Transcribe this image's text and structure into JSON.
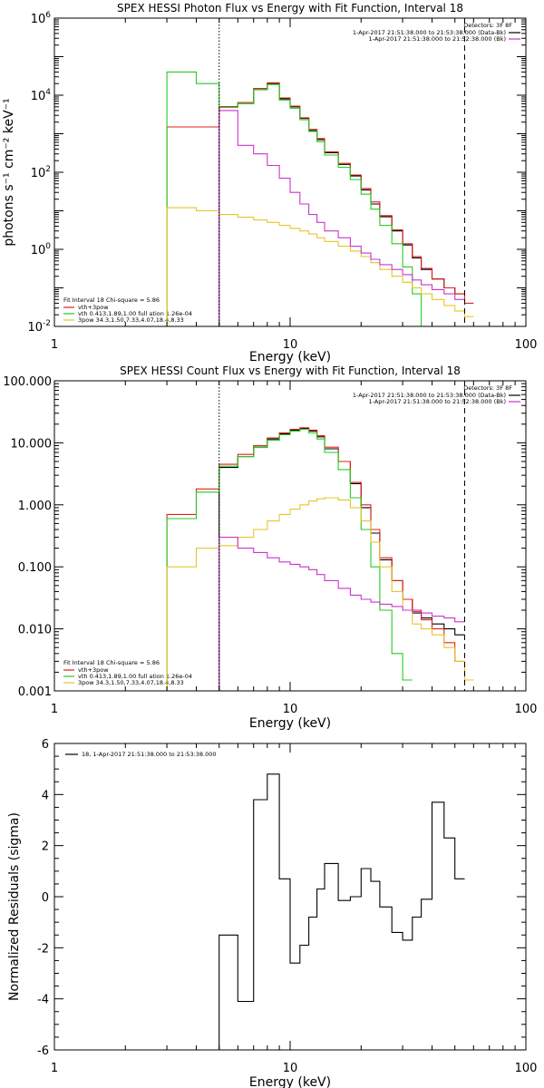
{
  "chart_data": [
    {
      "type": "line",
      "title": "SPEX HESSI Photon Flux vs Energy with Fit Function, Interval 18",
      "xlabel": "Energy (keV)",
      "ylabel": "photons s⁻¹ cm⁻² keV⁻¹",
      "xscale": "log",
      "yscale": "log",
      "xlim": [
        1,
        100
      ],
      "ylim": [
        0.01,
        1000000
      ],
      "x_tick_labels": [
        "1",
        "10",
        "100"
      ],
      "y_tick_labels": [
        {
          "value": 0.01,
          "base": "10",
          "exp": "-2"
        },
        {
          "value": 1,
          "base": "10",
          "exp": "0"
        },
        {
          "value": 100,
          "base": "10",
          "exp": "2"
        },
        {
          "value": 10000,
          "base": "10",
          "exp": "4"
        },
        {
          "value": 1000000,
          "base": "10",
          "exp": "6"
        }
      ],
      "legend_title": "Detectors: 3F 8F",
      "legend_entries": [
        {
          "text": "1-Apr-2017 21:51:38.000 to 21:53:38.000 (Data-Bk)",
          "color": "#000000"
        },
        {
          "text": "1-Apr-2017 21:51:38.000 to 21:52:38.000 (Bk)",
          "color": "#cc33cc"
        }
      ],
      "fit_lines": [
        {
          "text": "Fit Interval 18   Chi-square = 5.86",
          "color": ""
        },
        {
          "text": "vth+3pow",
          "color": "#e0201e"
        },
        {
          "text": "vth 0.413,1.89,1.00  full ation 1.26e-04",
          "color": "#22cc22"
        },
        {
          "text": "3pow 34.3,1.50,7.33,4.07,18.4,8.33",
          "color": "#e6c52a"
        }
      ],
      "vlines": [
        {
          "x": 5,
          "style": "dotted",
          "color": "#000000"
        },
        {
          "x": 55,
          "style": "dashed",
          "color": "#000000"
        }
      ],
      "edges": [
        3,
        4,
        5,
        6,
        7,
        8,
        9,
        10,
        11,
        12,
        13,
        14,
        16,
        18,
        20,
        22,
        24,
        27,
        30,
        33,
        36,
        40,
        45,
        50,
        55,
        60
      ],
      "series": [
        {
          "name": "Data-Bk",
          "color": "#000000",
          "start": 2,
          "values": [
            5000,
            6000,
            14000,
            20000,
            8000,
            5000,
            2500,
            1200,
            700,
            320,
            160,
            80,
            35,
            15,
            7,
            3,
            1.3,
            0.6,
            0.3,
            0.17,
            0.1,
            0.07
          ]
        },
        {
          "name": "vth+3pow",
          "color": "#e0201e",
          "start": 0,
          "values": [
            1500,
            1500,
            5000,
            6500,
            15000,
            21000,
            8500,
            5200,
            2600,
            1300,
            750,
            340,
            170,
            85,
            38,
            17,
            7.5,
            3.2,
            1.4,
            0.65,
            0.32,
            0.17,
            0.1,
            0.07,
            0.04
          ]
        },
        {
          "name": "vth",
          "color": "#22cc22",
          "start": 0,
          "values": [
            40000,
            20000,
            4800,
            6000,
            14000,
            19000,
            7500,
            4600,
            2300,
            1150,
            620,
            280,
            135,
            65,
            27,
            11,
            4.2,
            1.4,
            0.35,
            0.07,
            0.01
          ]
        },
        {
          "name": "3pow",
          "color": "#e6c52a",
          "start": 0,
          "values": [
            12,
            10,
            8,
            6.8,
            5.8,
            5,
            4.2,
            3.5,
            3,
            2.5,
            2,
            1.6,
            1.2,
            0.9,
            0.65,
            0.45,
            0.3,
            0.2,
            0.14,
            0.1,
            0.07,
            0.05,
            0.035,
            0.025,
            0.018
          ]
        },
        {
          "name": "Bk",
          "color": "#cc33cc",
          "start": 2,
          "values": [
            4000,
            500,
            300,
            150,
            70,
            30,
            15,
            8,
            5,
            3,
            2,
            1.2,
            0.8,
            0.55,
            0.4,
            0.3,
            0.22,
            0.16,
            0.12,
            0.09,
            0.07,
            0.05
          ]
        }
      ]
    },
    {
      "type": "line",
      "title": "SPEX HESSI Count Flux vs Energy with Fit Function, Interval 18",
      "xlabel": "Energy (keV)",
      "ylabel": "",
      "xscale": "log",
      "yscale": "log",
      "xlim": [
        1,
        100
      ],
      "ylim": [
        0.001,
        100
      ],
      "x_tick_labels": [
        "1",
        "10",
        "100"
      ],
      "y_tick_labels": [
        {
          "value": 0.001,
          "text": "0.001"
        },
        {
          "value": 0.01,
          "text": "0.010"
        },
        {
          "value": 0.1,
          "text": "0.100"
        },
        {
          "value": 1,
          "text": "1.000"
        },
        {
          "value": 10,
          "text": "10.000"
        },
        {
          "value": 100,
          "text": "100.000"
        }
      ],
      "legend_title": "Detectors: 3F 8F",
      "legend_entries": [
        {
          "text": "1-Apr-2017 21:51:38.000 to 21:53:38.000 (Data-Bk)",
          "color": "#000000"
        },
        {
          "text": "1-Apr-2017 21:51:38.000 to 21:52:38.000 (Bk)",
          "color": "#cc33cc"
        }
      ],
      "fit_lines": [
        {
          "text": "Fit Interval 18   Chi-square = 5.86",
          "color": ""
        },
        {
          "text": "vth+3pow",
          "color": "#e0201e"
        },
        {
          "text": "vth 0.413,1.89,1.00  full ation 1.26e-04",
          "color": "#22cc22"
        },
        {
          "text": "3pow 34.3,1.50,7.33,4.07,18.4,8.33",
          "color": "#e6c52a"
        }
      ],
      "vlines": [
        {
          "x": 5,
          "style": "dotted",
          "color": "#000000"
        },
        {
          "x": 55,
          "style": "dashed",
          "color": "#000000"
        }
      ],
      "edges": [
        3,
        4,
        5,
        6,
        7,
        8,
        9,
        10,
        11,
        12,
        13,
        14,
        16,
        18,
        20,
        22,
        24,
        27,
        30,
        33,
        36,
        40,
        45,
        50,
        55,
        60
      ],
      "series": [
        {
          "name": "Data-Bk",
          "color": "#000000",
          "start": 2,
          "values": [
            4.0,
            6.0,
            8.5,
            11.5,
            14.0,
            16.0,
            17.0,
            15.5,
            12.5,
            8.0,
            5.0,
            2.2,
            0.9,
            0.35,
            0.13,
            0.06,
            0.03,
            0.018,
            0.015,
            0.012,
            0.01,
            0.008
          ]
        },
        {
          "name": "vth+3pow",
          "color": "#e0201e",
          "start": 0,
          "values": [
            0.7,
            1.8,
            4.5,
            6.5,
            9.0,
            12.0,
            14.5,
            16.5,
            17.5,
            16.0,
            13.0,
            8.5,
            5.0,
            2.3,
            1.0,
            0.4,
            0.14,
            0.06,
            0.03,
            0.02,
            0.014,
            0.01,
            0.006,
            0.003,
            0.0015
          ]
        },
        {
          "name": "vth",
          "color": "#22cc22",
          "start": 0,
          "values": [
            0.6,
            1.6,
            4.2,
            6.0,
            8.4,
            11.0,
            13.5,
            15.5,
            16.5,
            14.5,
            11.5,
            7.0,
            3.7,
            1.3,
            0.4,
            0.1,
            0.02,
            0.004,
            0.0015
          ]
        },
        {
          "name": "3pow",
          "color": "#e6c52a",
          "start": 0,
          "values": [
            0.1,
            0.2,
            0.22,
            0.3,
            0.4,
            0.55,
            0.7,
            0.85,
            1.0,
            1.15,
            1.25,
            1.3,
            1.2,
            0.9,
            0.55,
            0.25,
            0.1,
            0.04,
            0.02,
            0.012,
            0.01,
            0.008,
            0.005,
            0.003,
            0.0015
          ]
        },
        {
          "name": "Bk",
          "color": "#cc33cc",
          "start": 2,
          "values": [
            0.3,
            0.2,
            0.17,
            0.14,
            0.12,
            0.11,
            0.1,
            0.09,
            0.075,
            0.06,
            0.045,
            0.035,
            0.03,
            0.027,
            0.025,
            0.023,
            0.02,
            0.019,
            0.018,
            0.016,
            0.015,
            0.013
          ]
        }
      ]
    },
    {
      "type": "line",
      "title": "",
      "xlabel": "Energy (keV)",
      "ylabel": "Normalized Residuals (sigma)",
      "xscale": "log",
      "yscale": "linear",
      "xlim": [
        1,
        100
      ],
      "ylim": [
        -6,
        6
      ],
      "x_tick_labels": [
        "1",
        "10",
        "100"
      ],
      "y_ticks": [
        -6,
        -4,
        -2,
        0,
        2,
        4,
        6
      ],
      "legend_entries": [
        {
          "text": "18,  1-Apr-2017 21:51:38.000 to 21:53:38.000",
          "color": "#000000"
        }
      ],
      "edges": [
        5,
        6,
        7,
        8,
        9,
        10,
        11,
        12,
        13,
        14,
        16,
        18,
        20,
        22,
        24,
        27,
        30,
        33,
        36,
        40,
        45,
        50,
        55
      ],
      "series": [
        {
          "color": "#000000",
          "values": [
            -1.5,
            -4.1,
            3.8,
            4.8,
            0.7,
            -2.6,
            -1.9,
            -0.8,
            0.3,
            1.3,
            -0.15,
            0.0,
            1.1,
            0.6,
            -0.4,
            -1.4,
            -1.7,
            -0.8,
            -0.1,
            3.7,
            2.3,
            0.7
          ]
        }
      ]
    }
  ]
}
